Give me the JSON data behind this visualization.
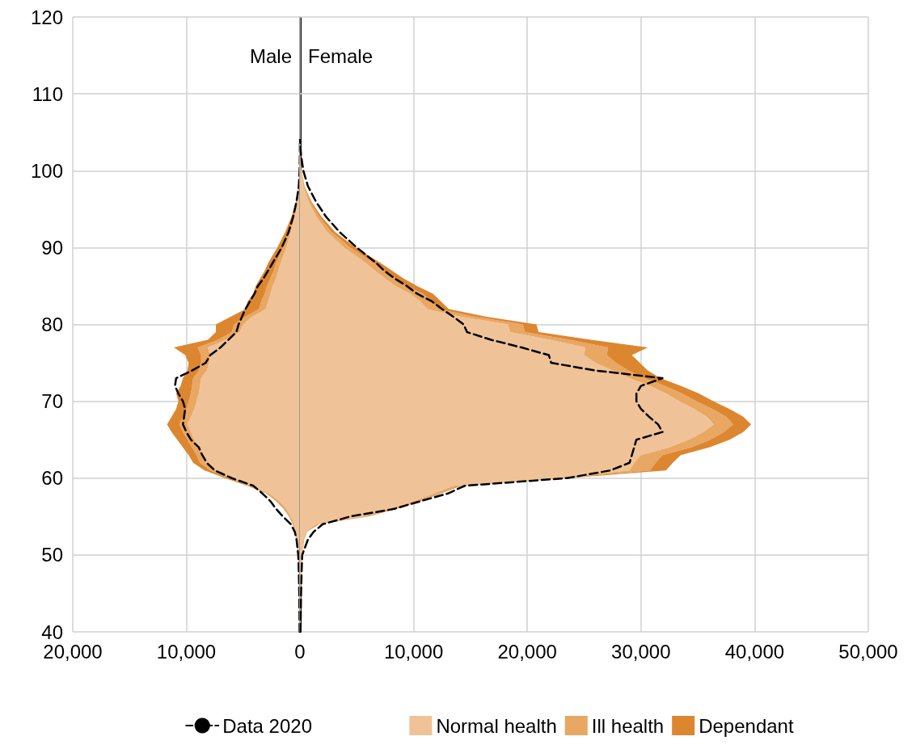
{
  "chart_data": [
    {
      "type": "area",
      "orientation": "horizontal",
      "stacked": true,
      "grid": true,
      "legend": "bottom right",
      "annotations": [
        "Male"
      ],
      "ref_lines": [
        {
          "axis": "x",
          "value": 0,
          "color": "#000000"
        }
      ],
      "xlim": [
        -20000,
        0
      ],
      "xticks": [
        {
          "value": -20000,
          "label": "20,000"
        },
        {
          "value": -10000,
          "label": "10,000"
        },
        0
      ],
      "ylim": [
        40,
        120
      ],
      "yticks": [
        40,
        50,
        60,
        70,
        80,
        90,
        100,
        110,
        120
      ],
      "x": [
        40,
        45,
        48,
        50,
        52,
        53,
        54,
        55,
        56,
        57,
        58,
        59,
        60,
        61,
        62,
        63,
        64,
        65,
        66,
        67,
        68,
        69,
        70,
        71,
        72,
        73,
        74,
        75,
        76,
        77,
        78,
        79,
        80,
        81,
        82,
        83,
        84,
        85,
        86,
        87,
        88,
        90,
        92,
        94,
        96,
        98,
        100,
        102,
        104
      ],
      "series": [
        {
          "color": "#efc397",
          "values": [
            -30,
            -60,
            -100,
            -150,
            -250,
            -350,
            -500,
            -800,
            -1200,
            -1800,
            -2700,
            -4300,
            -6000,
            -7400,
            -8300,
            -8600,
            -8900,
            -9300,
            -9600,
            -9900,
            -9600,
            -9300,
            -9100,
            -8900,
            -8800,
            -8700,
            -8200,
            -8000,
            -7900,
            -8100,
            -6500,
            -5300,
            -5000,
            -4200,
            -3000,
            -2800,
            -2600,
            -2400,
            -2100,
            -1900,
            -1700,
            -1200,
            -800,
            -450,
            -200,
            -80,
            -30,
            -10,
            0
          ]
        },
        {
          "color": "#e8a762",
          "values": [
            0,
            0,
            0,
            -10,
            -30,
            -50,
            -80,
            -100,
            -150,
            -200,
            -150,
            -200,
            -300,
            -500,
            -500,
            -500,
            -600,
            -600,
            -700,
            -700,
            -700,
            -700,
            -700,
            -700,
            -700,
            -700,
            -700,
            -700,
            -800,
            -900,
            -700,
            -700,
            -800,
            -600,
            -600,
            -600,
            -500,
            -500,
            -500,
            -400,
            -400,
            -300,
            -200,
            -100,
            -50,
            -20,
            -10,
            0,
            0
          ]
        },
        {
          "color": "#dd8630",
          "values": [
            0,
            0,
            0,
            -10,
            -20,
            -30,
            -50,
            -60,
            -80,
            -100,
            -100,
            -150,
            -300,
            -500,
            -600,
            -700,
            -800,
            -900,
            -1000,
            -1100,
            -1000,
            -900,
            -900,
            -1300,
            -1000,
            -900,
            -1000,
            -1100,
            -1400,
            -2100,
            -900,
            -1400,
            -1600,
            -1300,
            -1200,
            -1200,
            -1000,
            -1000,
            -900,
            -800,
            -700,
            -500,
            -300,
            -200,
            -80,
            -30,
            -10,
            0,
            0
          ]
        },
        {
          "name": "Data 2020",
          "type": "line",
          "line_style": "dashed",
          "color": "#000000",
          "values": [
            -30,
            -60,
            -100,
            -150,
            -300,
            -450,
            -800,
            -1500,
            -2100,
            -2600,
            -3300,
            -4100,
            -6000,
            -7500,
            -8200,
            -8600,
            -8900,
            -9600,
            -10000,
            -10300,
            -10200,
            -10100,
            -10300,
            -10700,
            -11000,
            -10900,
            -9500,
            -8300,
            -7900,
            -7000,
            -6300,
            -5600,
            -5400,
            -5100,
            -4800,
            -4400,
            -4000,
            -3700,
            -3200,
            -2800,
            -2400,
            -1600,
            -1000,
            -600,
            -300,
            -100,
            -30,
            -10,
            0
          ]
        }
      ]
    },
    {
      "type": "area",
      "orientation": "horizontal",
      "stacked": true,
      "grid": true,
      "legend": "bottom",
      "tick_labels": "x",
      "annotations": [
        "Female"
      ],
      "xlim": [
        0,
        50000
      ],
      "xticks": [
        {
          "value": 0,
          "label": null
        },
        {
          "value": 10000,
          "label": "10,000"
        },
        {
          "value": 20000,
          "label": "20,000"
        },
        {
          "value": 30000,
          "label": "30,000"
        },
        {
          "value": 40000,
          "label": "40,000"
        },
        {
          "value": 50000,
          "label": "50,000"
        }
      ],
      "ylim": [
        40,
        120
      ],
      "yticks": [
        40,
        50,
        60,
        70,
        80,
        90,
        100,
        110,
        120
      ],
      "x": [
        40,
        45,
        48,
        50,
        52,
        53,
        54,
        55,
        56,
        57,
        58,
        59,
        60,
        61,
        62,
        63,
        64,
        65,
        66,
        67,
        68,
        69,
        70,
        71,
        72,
        73,
        74,
        75,
        76,
        77,
        78,
        79,
        80,
        81,
        82,
        83,
        84,
        85,
        86,
        87,
        88,
        90,
        92,
        94,
        96,
        98,
        100,
        102,
        104
      ],
      "series": [
        {
          "name": "Normal health",
          "color": "#efc397",
          "values": [
            50,
            100,
            150,
            200,
            300,
            500,
            1400,
            5400,
            7900,
            10000,
            11800,
            13500,
            22300,
            29000,
            29400,
            30000,
            32500,
            34200,
            35500,
            36400,
            35800,
            34700,
            33400,
            32200,
            30800,
            29000,
            27500,
            26000,
            25000,
            25100,
            22000,
            18500,
            18300,
            14200,
            11200,
            10600,
            9700,
            8400,
            7500,
            6600,
            5800,
            3900,
            2400,
            1450,
            750,
            300,
            100,
            20,
            0
          ]
        },
        {
          "name": "Ill health",
          "color": "#e8a762",
          "values": [
            0,
            0,
            0,
            20,
            50,
            80,
            200,
            400,
            400,
            400,
            400,
            500,
            800,
            1800,
            1900,
            1900,
            1900,
            1900,
            1800,
            1700,
            1700,
            1600,
            1500,
            1400,
            1300,
            1300,
            1400,
            1800,
            2000,
            2000,
            1700,
            1300,
            1300,
            1200,
            1000,
            1000,
            1100,
            1000,
            900,
            800,
            700,
            550,
            400,
            250,
            150,
            60,
            30,
            10,
            0
          ]
        },
        {
          "name": "Dependant",
          "color": "#dd8630",
          "values": [
            0,
            0,
            0,
            10,
            20,
            30,
            100,
            200,
            200,
            200,
            200,
            200,
            400,
            1400,
            1500,
            1600,
            1600,
            1700,
            1700,
            1600,
            1500,
            1500,
            1500,
            1500,
            1400,
            1400,
            1700,
            2100,
            2200,
            3500,
            1900,
            1200,
            1200,
            1000,
            900,
            800,
            900,
            900,
            700,
            700,
            600,
            450,
            300,
            200,
            100,
            40,
            20,
            10,
            0
          ]
        },
        {
          "type": "line",
          "line_style": "dashed",
          "color": "#000000",
          "values": [
            50,
            100,
            150,
            200,
            700,
            1200,
            2000,
            4400,
            8300,
            10600,
            13000,
            14500,
            23500,
            27300,
            29000,
            29200,
            29400,
            29600,
            31900,
            31500,
            30700,
            30000,
            29600,
            29600,
            30000,
            31900,
            26000,
            22100,
            21900,
            19500,
            16800,
            14700,
            14400,
            13500,
            12500,
            11600,
            10300,
            9400,
            8300,
            7400,
            6700,
            5000,
            3500,
            2300,
            1400,
            700,
            300,
            100,
            0
          ]
        }
      ]
    }
  ]
}
